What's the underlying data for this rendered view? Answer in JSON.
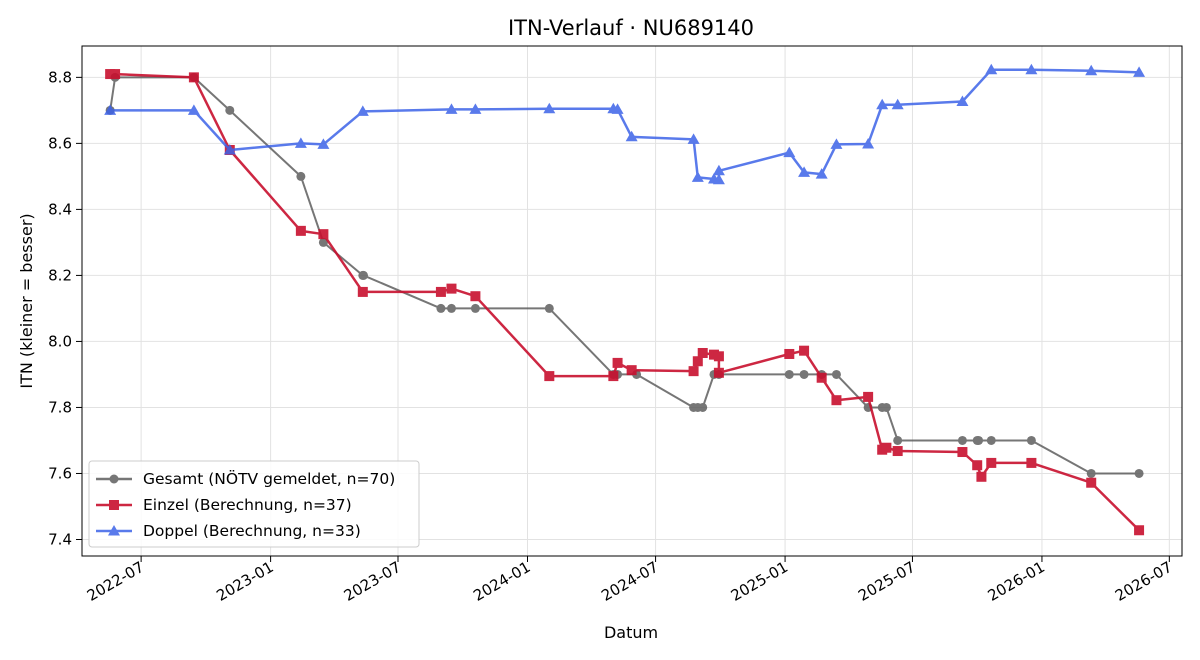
{
  "chart_data": {
    "type": "line",
    "title": "ITN-Verlauf · NU689140",
    "xlabel": "Datum",
    "ylabel": "ITN  (kleiner = besser)",
    "x_ticks": [
      "2022-07-01",
      "2023-01-01",
      "2023-07-01",
      "2024-01-01",
      "2024-07-01",
      "2025-01-01",
      "2025-07-01",
      "2026-01-01",
      "2026-07-01"
    ],
    "x_tick_labels": [
      "2022-07",
      "2023-01",
      "2023-07",
      "2024-01",
      "2024-07",
      "2025-01",
      "2025-07",
      "2026-01",
      "2026-07"
    ],
    "xlim": [
      "2022-04-08",
      "2026-07-19"
    ],
    "y_ticks": [
      7.4,
      7.6,
      7.8,
      8.0,
      8.2,
      8.4,
      8.6,
      8.8
    ],
    "y_tick_labels": [
      "7.4",
      "7.6",
      "7.8",
      "8.0",
      "8.2",
      "8.4",
      "8.6",
      "8.8"
    ],
    "ylim": [
      7.35,
      8.895
    ],
    "grid": true,
    "legend_position": "lower-left",
    "series": [
      {
        "name": "Gesamt (NÖTV gemeldet, n=70)",
        "color": "#555555",
        "marker": "circle",
        "opacity": 0.8,
        "points": [
          [
            "2022-05-18",
            8.7
          ],
          [
            "2022-05-25",
            8.8
          ],
          [
            "2022-09-14",
            8.8
          ],
          [
            "2022-11-04",
            8.7
          ],
          [
            "2023-02-13",
            8.5
          ],
          [
            "2023-03-17",
            8.3
          ],
          [
            "2023-05-12",
            8.2
          ],
          [
            "2023-05-13",
            8.2
          ],
          [
            "2023-08-31",
            8.1
          ],
          [
            "2023-09-15",
            8.1
          ],
          [
            "2023-10-19",
            8.1
          ],
          [
            "2024-02-01",
            8.1
          ],
          [
            "2024-05-02",
            7.9
          ],
          [
            "2024-05-08",
            7.9
          ],
          [
            "2024-06-04",
            7.9
          ],
          [
            "2024-08-24",
            7.8
          ],
          [
            "2024-08-30",
            7.8
          ],
          [
            "2024-09-06",
            7.8
          ],
          [
            "2024-09-22",
            7.9
          ],
          [
            "2024-09-29",
            7.9
          ],
          [
            "2025-01-07",
            7.9
          ],
          [
            "2025-01-28",
            7.9
          ],
          [
            "2025-02-22",
            7.9
          ],
          [
            "2025-03-15",
            7.9
          ],
          [
            "2025-04-29",
            7.8
          ],
          [
            "2025-05-19",
            7.8
          ],
          [
            "2025-05-25",
            7.8
          ],
          [
            "2025-06-10",
            7.7
          ],
          [
            "2025-09-10",
            7.7
          ],
          [
            "2025-10-01",
            7.7
          ],
          [
            "2025-10-03",
            7.7
          ],
          [
            "2025-10-21",
            7.7
          ],
          [
            "2025-12-17",
            7.7
          ],
          [
            "2026-03-12",
            7.6
          ],
          [
            "2026-05-19",
            7.6
          ]
        ]
      },
      {
        "name": "Einzel (Berechnung, n=37)",
        "color": "#c8102e",
        "marker": "square",
        "opacity": 0.9,
        "points": [
          [
            "2022-05-18",
            8.81
          ],
          [
            "2022-05-25",
            8.81
          ],
          [
            "2022-09-14",
            8.8
          ],
          [
            "2022-11-04",
            8.58
          ],
          [
            "2023-02-13",
            8.335
          ],
          [
            "2023-03-17",
            8.325
          ],
          [
            "2023-05-12",
            8.15
          ],
          [
            "2023-08-31",
            8.15
          ],
          [
            "2023-09-15",
            8.16
          ],
          [
            "2023-10-19",
            8.137
          ],
          [
            "2024-02-01",
            7.895
          ],
          [
            "2024-05-02",
            7.895
          ],
          [
            "2024-05-08",
            7.935
          ],
          [
            "2024-05-28",
            7.913
          ],
          [
            "2024-08-24",
            7.91
          ],
          [
            "2024-08-30",
            7.94
          ],
          [
            "2024-09-06",
            7.965
          ],
          [
            "2024-09-22",
            7.96
          ],
          [
            "2024-09-29",
            7.955
          ],
          [
            "2024-09-29",
            7.905
          ],
          [
            "2025-01-07",
            7.962
          ],
          [
            "2025-01-28",
            7.972
          ],
          [
            "2025-02-22",
            7.89
          ],
          [
            "2025-03-15",
            7.822
          ],
          [
            "2025-04-29",
            7.832
          ],
          [
            "2025-05-19",
            7.672
          ],
          [
            "2025-05-25",
            7.678
          ],
          [
            "2025-06-10",
            7.668
          ],
          [
            "2025-09-10",
            7.665
          ],
          [
            "2025-10-01",
            7.625
          ],
          [
            "2025-10-07",
            7.59
          ],
          [
            "2025-10-21",
            7.632
          ],
          [
            "2025-12-17",
            7.632
          ],
          [
            "2026-03-12",
            7.572
          ],
          [
            "2026-05-19",
            7.428
          ]
        ]
      },
      {
        "name": "Doppel (Berechnung, n=33)",
        "color": "#3d63e8",
        "marker": "triangle",
        "opacity": 0.85,
        "points": [
          [
            "2022-05-18",
            8.7
          ],
          [
            "2022-09-14",
            8.7
          ],
          [
            "2022-11-04",
            8.58
          ],
          [
            "2023-02-13",
            8.6
          ],
          [
            "2023-03-17",
            8.597
          ],
          [
            "2023-05-12",
            8.697
          ],
          [
            "2023-09-15",
            8.703
          ],
          [
            "2023-10-19",
            8.703
          ],
          [
            "2024-02-01",
            8.705
          ],
          [
            "2024-05-02",
            8.705
          ],
          [
            "2024-05-08",
            8.703
          ],
          [
            "2024-05-28",
            8.62
          ],
          [
            "2024-08-24",
            8.612
          ],
          [
            "2024-08-30",
            8.497
          ],
          [
            "2024-09-22",
            8.492
          ],
          [
            "2024-09-29",
            8.49
          ],
          [
            "2024-09-29",
            8.517
          ],
          [
            "2025-01-07",
            8.572
          ],
          [
            "2025-01-28",
            8.512
          ],
          [
            "2025-02-22",
            8.507
          ],
          [
            "2025-03-15",
            8.597
          ],
          [
            "2025-04-29",
            8.598
          ],
          [
            "2025-05-19",
            8.717
          ],
          [
            "2025-06-10",
            8.717
          ],
          [
            "2025-09-10",
            8.727
          ],
          [
            "2025-10-21",
            8.823
          ],
          [
            "2025-12-17",
            8.823
          ],
          [
            "2026-03-12",
            8.82
          ],
          [
            "2026-05-19",
            8.815
          ]
        ]
      }
    ]
  }
}
